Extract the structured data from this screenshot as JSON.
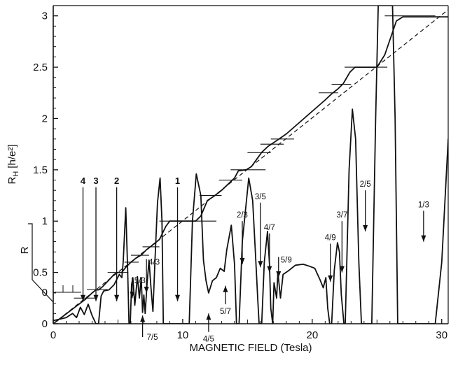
{
  "chart_data": {
    "type": "line",
    "title": "",
    "xlabel": "MAGNETIC FIELD (Tesla)",
    "ylabel": "R_H [h/e²]",
    "ylabel_main": "R",
    "ylabel_sub": "H",
    "ylabel_unit": "[h/e²]",
    "secondary_ylabel": "R",
    "xlim": [
      0,
      30.5
    ],
    "ylim": [
      0,
      3.1
    ],
    "grid": false,
    "legend": "none",
    "xticks": [
      {
        "value": 0,
        "label": "0"
      },
      {
        "value": 10,
        "label": "10"
      },
      {
        "value": 20,
        "label": "20"
      },
      {
        "value": 30,
        "label": "30"
      }
    ],
    "yticks": [
      {
        "value": 0,
        "label": "0"
      },
      {
        "value": 0.5,
        "label": "0.5"
      },
      {
        "value": 1,
        "label": "1"
      },
      {
        "value": 1.5,
        "label": "1.5"
      },
      {
        "value": 2,
        "label": "2"
      },
      {
        "value": 2.5,
        "label": "2.5"
      },
      {
        "value": 3,
        "label": "3"
      }
    ],
    "r_yticks": [
      {
        "value": 0,
        "label": "0"
      }
    ],
    "series": [
      {
        "name": "",
        "role": "hall-resistance",
        "style": "solid",
        "points": [
          [
            0,
            0
          ],
          [
            2.5,
            0.24
          ],
          [
            3.0,
            0.3
          ],
          [
            3.3,
            0.33
          ],
          [
            3.5,
            0.33
          ],
          [
            3.8,
            0.36
          ],
          [
            4.7,
            0.48
          ],
          [
            5.0,
            0.5
          ],
          [
            5.3,
            0.5
          ],
          [
            5.6,
            0.55
          ],
          [
            6.0,
            0.6
          ],
          [
            6.4,
            0.64
          ],
          [
            6.8,
            0.67
          ],
          [
            7.2,
            0.72
          ],
          [
            7.6,
            0.76
          ],
          [
            8.2,
            0.82
          ],
          [
            8.7,
            0.95
          ],
          [
            9.0,
            1.0
          ],
          [
            11.0,
            1.0
          ],
          [
            11.4,
            1.05
          ],
          [
            11.9,
            1.2
          ],
          [
            12.5,
            1.25
          ],
          [
            13.0,
            1.3
          ],
          [
            14.0,
            1.42
          ],
          [
            14.3,
            1.49
          ],
          [
            14.9,
            1.5
          ],
          [
            15.3,
            1.53
          ],
          [
            15.7,
            1.6
          ],
          [
            16.1,
            1.67
          ],
          [
            16.6,
            1.73
          ],
          [
            17.2,
            1.78
          ],
          [
            18.0,
            1.85
          ],
          [
            21.0,
            2.18
          ],
          [
            21.5,
            2.24
          ],
          [
            22.0,
            2.29
          ],
          [
            22.4,
            2.34
          ],
          [
            22.9,
            2.45
          ],
          [
            23.3,
            2.5
          ],
          [
            25.0,
            2.5
          ],
          [
            25.6,
            2.62
          ],
          [
            26.5,
            2.95
          ],
          [
            27.0,
            2.99
          ],
          [
            30.5,
            2.99
          ]
        ]
      },
      {
        "name": "",
        "role": "classical-hall-line",
        "style": "dashed",
        "points": [
          [
            0,
            0
          ],
          [
            30.5,
            3.06
          ]
        ]
      },
      {
        "name": "",
        "role": "longitudinal-resistance",
        "style": "solid",
        "points": [
          [
            0,
            0.03
          ],
          [
            1.0,
            0.06
          ],
          [
            1.5,
            0.1
          ],
          [
            1.8,
            0.06
          ],
          [
            2.1,
            0.16
          ],
          [
            2.4,
            0.09
          ],
          [
            2.7,
            0.19
          ],
          [
            3.0,
            0.08
          ],
          [
            3.3,
            0.0
          ],
          [
            3.5,
            0.0
          ],
          [
            3.7,
            0.27
          ],
          [
            3.9,
            0.32
          ],
          [
            4.3,
            0.33
          ],
          [
            4.7,
            0.38
          ],
          [
            5.1,
            0.48
          ],
          [
            5.3,
            0.45
          ],
          [
            5.4,
            0.6
          ],
          [
            5.6,
            1.13
          ],
          [
            5.75,
            0.52
          ],
          [
            5.85,
            0.0
          ],
          [
            5.95,
            0.0
          ],
          [
            6.05,
            0.38
          ],
          [
            6.15,
            0.45
          ],
          [
            6.3,
            0.18
          ],
          [
            6.5,
            0.46
          ],
          [
            6.65,
            0.25
          ],
          [
            6.8,
            0.45
          ],
          [
            6.9,
            0.11
          ],
          [
            7.0,
            0.28
          ],
          [
            7.1,
            0.1
          ],
          [
            7.25,
            0.4
          ],
          [
            7.4,
            0.62
          ],
          [
            7.55,
            0.35
          ],
          [
            7.7,
            0.12
          ],
          [
            7.85,
            0.6
          ],
          [
            8.05,
            1.18
          ],
          [
            8.25,
            1.42
          ],
          [
            8.4,
            1.0
          ],
          [
            8.5,
            0.0
          ],
          [
            10.5,
            0.0
          ],
          [
            10.75,
            1.0
          ],
          [
            11.05,
            1.46
          ],
          [
            11.4,
            1.25
          ],
          [
            11.6,
            0.62
          ],
          [
            11.8,
            0.42
          ],
          [
            12.0,
            0.3
          ],
          [
            12.3,
            0.42
          ],
          [
            12.6,
            0.45
          ],
          [
            12.9,
            0.54
          ],
          [
            13.2,
            0.51
          ],
          [
            13.4,
            0.72
          ],
          [
            13.75,
            0.96
          ],
          [
            14.0,
            0.58
          ],
          [
            14.15,
            0.0
          ],
          [
            14.35,
            0.0
          ],
          [
            14.6,
            0.8
          ],
          [
            15.1,
            1.42
          ],
          [
            15.4,
            1.2
          ],
          [
            15.6,
            0.72
          ],
          [
            15.8,
            0.22
          ],
          [
            15.9,
            0.0
          ],
          [
            16.1,
            0.0
          ],
          [
            16.3,
            0.6
          ],
          [
            16.55,
            0.9
          ],
          [
            16.7,
            0.58
          ],
          [
            16.8,
            0.15
          ],
          [
            16.95,
            0.0
          ],
          [
            17.05,
            0.4
          ],
          [
            17.25,
            0.25
          ],
          [
            17.35,
            0.5
          ],
          [
            17.55,
            0.25
          ],
          [
            17.75,
            0.48
          ],
          [
            18.2,
            0.52
          ],
          [
            18.7,
            0.57
          ],
          [
            19.3,
            0.58
          ],
          [
            19.8,
            0.56
          ],
          [
            20.2,
            0.54
          ],
          [
            20.6,
            0.43
          ],
          [
            20.85,
            0.35
          ],
          [
            21.05,
            0.45
          ],
          [
            21.2,
            0.15
          ],
          [
            21.35,
            0.0
          ],
          [
            21.5,
            0.0
          ],
          [
            21.7,
            0.52
          ],
          [
            21.95,
            0.79
          ],
          [
            22.1,
            0.7
          ],
          [
            22.25,
            0.28
          ],
          [
            22.45,
            0.0
          ],
          [
            22.55,
            0.0
          ],
          [
            22.85,
            1.5
          ],
          [
            23.1,
            2.09
          ],
          [
            23.35,
            1.8
          ],
          [
            23.6,
            0.6
          ],
          [
            23.8,
            0.0
          ],
          [
            24.6,
            0.0
          ],
          [
            24.9,
            2.0
          ],
          [
            25.1,
            3.1
          ],
          [
            26.2,
            3.1
          ],
          [
            26.4,
            2.0
          ],
          [
            26.6,
            0.0
          ],
          [
            29.5,
            0.0
          ],
          [
            30.0,
            0.6
          ],
          [
            30.5,
            1.8
          ]
        ]
      }
    ],
    "plateau_marks": [
      {
        "y": 0.25,
        "x": [
          1.6,
          3.4
        ]
      },
      {
        "y": 0.333,
        "x": [
          2.6,
          4.2
        ]
      },
      {
        "y": 0.5,
        "x": [
          4.2,
          5.8
        ]
      },
      {
        "y": 0.6,
        "x": [
          5.5,
          6.6
        ]
      },
      {
        "y": 0.667,
        "x": [
          6.0,
          7.4
        ]
      },
      {
        "y": 0.75,
        "x": [
          6.9,
          8.2
        ]
      },
      {
        "y": 1.0,
        "x": [
          8.2,
          12.6
        ]
      },
      {
        "y": 1.25,
        "x": [
          11.3,
          13.0
        ]
      },
      {
        "y": 1.4,
        "x": [
          12.8,
          14.6
        ]
      },
      {
        "y": 1.5,
        "x": [
          13.7,
          16.4
        ]
      },
      {
        "y": 1.667,
        "x": [
          15.0,
          16.8
        ]
      },
      {
        "y": 1.75,
        "x": [
          16.0,
          17.8
        ]
      },
      {
        "y": 1.8,
        "x": [
          16.8,
          18.6
        ]
      },
      {
        "y": 2.25,
        "x": [
          20.5,
          22.0
        ]
      },
      {
        "y": 2.333,
        "x": [
          21.5,
          23.0
        ]
      },
      {
        "y": 2.5,
        "x": [
          22.5,
          25.8
        ]
      },
      {
        "y": 3.0,
        "x": [
          25.6,
          29.5
        ]
      }
    ],
    "annotations": [
      {
        "text": "4",
        "kind": "integer",
        "x": 2.3,
        "from": 1.33,
        "to": 0.22,
        "label_above": true
      },
      {
        "text": "3",
        "kind": "integer",
        "x": 3.3,
        "from": 1.33,
        "to": 0.22,
        "label_above": true
      },
      {
        "text": "2",
        "kind": "integer",
        "x": 4.9,
        "from": 1.33,
        "to": 0.22,
        "label_above": true
      },
      {
        "text": "1",
        "kind": "integer",
        "x": 9.6,
        "from": 1.33,
        "to": 0.22,
        "label_above": true
      },
      {
        "text": "5/3",
        "kind": "fraction",
        "x": 6.1,
        "from": 0.45,
        "to": 0.25,
        "label_above": true
      },
      {
        "text": "4/3",
        "kind": "fraction",
        "x": 7.2,
        "from": 0.63,
        "to": 0.3,
        "label_above": true
      },
      {
        "text": "7/5",
        "kind": "fraction",
        "x": 6.9,
        "from": -0.13,
        "to": 0.08,
        "label_above": false
      },
      {
        "text": "4/5",
        "kind": "fraction",
        "x": 12.0,
        "from": -0.08,
        "to": 0.1,
        "label_above": false
      },
      {
        "text": "5/7",
        "kind": "fraction",
        "x": 13.3,
        "from": 0.19,
        "to": 0.37,
        "label_above": false
      },
      {
        "text": "2/3",
        "kind": "fraction",
        "x": 14.6,
        "from": 1.0,
        "to": 0.58,
        "label_above": true
      },
      {
        "text": "3/5",
        "kind": "fraction",
        "x": 16.0,
        "from": 1.18,
        "to": 0.55,
        "label_above": true
      },
      {
        "text": "4/7",
        "kind": "fraction",
        "x": 16.7,
        "from": 0.88,
        "to": 0.5,
        "label_above": true
      },
      {
        "text": "5/9",
        "kind": "fraction",
        "x": 17.4,
        "from": 0.65,
        "to": 0.45,
        "label_above": true
      },
      {
        "text": "4/9",
        "kind": "fraction",
        "x": 21.4,
        "from": 0.78,
        "to": 0.41,
        "label_above": true
      },
      {
        "text": "3/7",
        "kind": "fraction",
        "x": 22.3,
        "from": 1.0,
        "to": 0.5,
        "label_above": true
      },
      {
        "text": "2/5",
        "kind": "fraction",
        "x": 24.1,
        "from": 1.3,
        "to": 0.9,
        "label_above": true
      },
      {
        "text": "1/3",
        "kind": "fraction",
        "x": 28.6,
        "from": 1.1,
        "to": 0.8,
        "label_above": true
      }
    ]
  }
}
